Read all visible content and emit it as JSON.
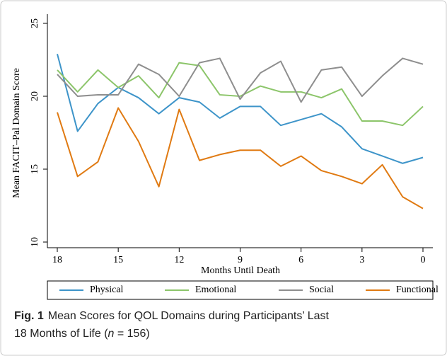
{
  "chart_data": {
    "type": "line",
    "x_label": "Months Until Death",
    "y_label": "Mean FACIT–Pal Domain Score",
    "x": [
      18,
      17,
      16,
      15,
      14,
      13,
      12,
      11,
      10,
      9,
      8,
      7,
      6,
      5,
      4,
      3,
      2,
      1,
      0
    ],
    "xlim": [
      18,
      0
    ],
    "xticks": [
      18,
      15,
      12,
      9,
      6,
      3,
      0
    ],
    "ylim": [
      10,
      25
    ],
    "yticks": [
      10,
      15,
      20,
      25
    ],
    "grid": false,
    "legend": "bottom",
    "series": [
      {
        "name": "Physical",
        "color": "#3d94c9",
        "values": [
          22.9,
          17.6,
          19.5,
          20.6,
          19.9,
          18.8,
          19.9,
          19.6,
          18.5,
          19.3,
          19.3,
          18.0,
          18.4,
          18.8,
          17.9,
          16.4,
          15.9,
          15.4,
          15.8
        ]
      },
      {
        "name": "Emotional",
        "color": "#8cc56a",
        "values": [
          21.8,
          20.3,
          21.8,
          20.6,
          21.4,
          19.9,
          22.3,
          22.1,
          20.1,
          20.0,
          20.7,
          20.3,
          20.3,
          19.9,
          20.5,
          18.3,
          18.3,
          18.0,
          19.3
        ]
      },
      {
        "name": "Social",
        "color": "#8e8e8e",
        "values": [
          21.5,
          20.0,
          20.1,
          20.1,
          22.2,
          21.5,
          20.0,
          22.3,
          22.6,
          19.8,
          21.6,
          22.4,
          19.6,
          21.8,
          22.0,
          20.0,
          21.4,
          22.6,
          22.2
        ]
      },
      {
        "name": "Functional",
        "color": "#e07a12",
        "values": [
          18.9,
          14.5,
          15.5,
          19.2,
          16.9,
          13.8,
          19.1,
          15.6,
          16.0,
          16.3,
          16.3,
          15.2,
          15.9,
          14.9,
          14.5,
          14.0,
          15.3,
          13.1,
          12.3
        ]
      }
    ],
    "caption": {
      "label": "Fig. 1",
      "line1": "Mean Scores for QOL Domains during Participants’ Last",
      "line2": "18 Months of Life (",
      "n": "n",
      "line2_end": " = 156)"
    }
  }
}
